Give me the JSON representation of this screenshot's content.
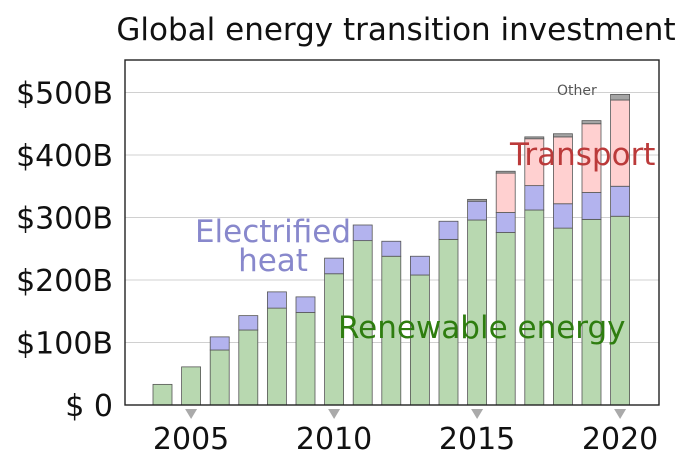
{
  "chart_data": {
    "type": "bar",
    "stacked": true,
    "title": "Global energy transition investment",
    "years": [
      2004,
      2005,
      2006,
      2007,
      2008,
      2009,
      2010,
      2011,
      2012,
      2013,
      2014,
      2015,
      2016,
      2017,
      2018,
      2019,
      2020
    ],
    "x_tick_labels": [
      "2005",
      "2010",
      "2015",
      "2020"
    ],
    "x_tick_years": [
      2005,
      2010,
      2015,
      2020
    ],
    "y_tick_labels": [
      "$ 0",
      "$100B",
      "$200B",
      "$300B",
      "$400B",
      "$500B"
    ],
    "y_tick_values": [
      0,
      100,
      200,
      300,
      400,
      500
    ],
    "ylim": [
      0,
      550
    ],
    "grid": true,
    "series": [
      {
        "name": "Renewable energy",
        "color": "#b8d8b0",
        "label_color": "#2e7d0f",
        "values": [
          33,
          61,
          88,
          120,
          155,
          148,
          210,
          263,
          238,
          208,
          265,
          296,
          276,
          312,
          283,
          297,
          302
        ]
      },
      {
        "name": "Electrified heat",
        "color": "#b3b3ee",
        "label_color": "#8888cc",
        "values": [
          0,
          0,
          21,
          23,
          26,
          25,
          25,
          25,
          24,
          30,
          29,
          30,
          32,
          39,
          39,
          43,
          48
        ]
      },
      {
        "name": "Transport",
        "color": "#ffd0d0",
        "label_color": "#bb3a3a",
        "values": [
          0,
          0,
          0,
          0,
          0,
          0,
          0,
          0,
          0,
          0,
          0,
          0,
          63,
          75,
          107,
          110,
          138
        ]
      },
      {
        "name": "Other",
        "color": "#a5a5a5",
        "label_color": "#555555",
        "values": [
          0,
          0,
          0,
          0,
          0,
          0,
          0,
          0,
          0,
          0,
          0,
          3,
          3,
          3,
          5,
          5,
          9
        ]
      }
    ],
    "series_labels": {
      "renewable": "Renewable energy",
      "heat_line1": "Electrified",
      "heat_line2": "heat",
      "transport": "Transport",
      "other": "Other"
    }
  }
}
